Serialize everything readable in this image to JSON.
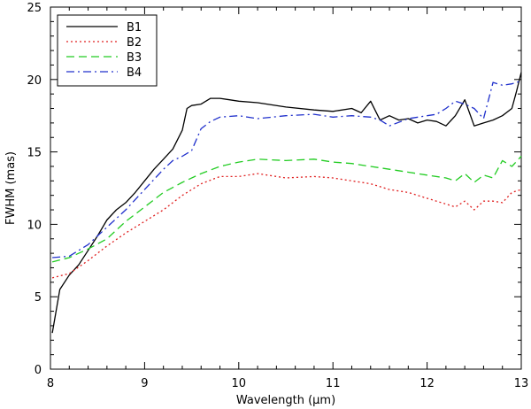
{
  "chart_data": {
    "type": "line",
    "title": "",
    "xlabel": "Wavelength (μm)",
    "ylabel": "FWHM (mas)",
    "xlim": [
      8,
      13
    ],
    "ylim": [
      0,
      25
    ],
    "xticks": [
      "8",
      "9",
      "10",
      "11",
      "12",
      "13"
    ],
    "yticks": [
      "0",
      "5",
      "10",
      "15",
      "20",
      "25"
    ],
    "grid": false,
    "legend_position": "top-left",
    "series": [
      {
        "name": "B1",
        "color": "#000000",
        "dash": "solid",
        "x": [
          8.02,
          8.1,
          8.2,
          8.3,
          8.4,
          8.5,
          8.6,
          8.7,
          8.8,
          8.9,
          9.0,
          9.1,
          9.2,
          9.3,
          9.4,
          9.45,
          9.5,
          9.6,
          9.7,
          9.8,
          9.9,
          10.0,
          10.2,
          10.5,
          10.8,
          11.0,
          11.2,
          11.3,
          11.4,
          11.5,
          11.6,
          11.7,
          11.8,
          11.9,
          12.0,
          12.1,
          12.2,
          12.3,
          12.4,
          12.5,
          12.6,
          12.7,
          12.8,
          12.9,
          12.95,
          13.0
        ],
        "y": [
          2.5,
          5.5,
          6.5,
          7.2,
          8.2,
          9.2,
          10.3,
          11.0,
          11.5,
          12.2,
          13.0,
          13.8,
          14.5,
          15.2,
          16.5,
          18.0,
          18.2,
          18.3,
          18.7,
          18.7,
          18.6,
          18.5,
          18.4,
          18.1,
          17.9,
          17.8,
          18.0,
          17.7,
          18.5,
          17.2,
          17.5,
          17.2,
          17.3,
          17.0,
          17.2,
          17.1,
          16.8,
          17.5,
          18.6,
          16.8,
          17.0,
          17.2,
          17.5,
          18.0,
          19.2,
          20.5
        ]
      },
      {
        "name": "B2",
        "color": "#e02020",
        "dash": "dotted",
        "x": [
          8.02,
          8.2,
          8.4,
          8.6,
          8.8,
          9.0,
          9.2,
          9.4,
          9.6,
          9.8,
          10.0,
          10.2,
          10.5,
          10.8,
          11.0,
          11.2,
          11.4,
          11.6,
          11.8,
          12.0,
          12.2,
          12.3,
          12.4,
          12.5,
          12.6,
          12.7,
          12.8,
          12.9,
          13.0
        ],
        "y": [
          6.3,
          6.6,
          7.5,
          8.5,
          9.4,
          10.2,
          11.0,
          12.0,
          12.8,
          13.3,
          13.3,
          13.5,
          13.2,
          13.3,
          13.2,
          13.0,
          12.8,
          12.4,
          12.2,
          11.8,
          11.4,
          11.2,
          11.6,
          11.0,
          11.6,
          11.6,
          11.5,
          12.2,
          12.4
        ]
      },
      {
        "name": "B3",
        "color": "#22cc22",
        "dash": "dashed",
        "x": [
          8.02,
          8.2,
          8.4,
          8.6,
          8.8,
          9.0,
          9.2,
          9.4,
          9.6,
          9.8,
          10.0,
          10.2,
          10.5,
          10.8,
          11.0,
          11.2,
          11.4,
          11.6,
          11.8,
          12.0,
          12.2,
          12.3,
          12.4,
          12.5,
          12.6,
          12.7,
          12.8,
          12.9,
          13.0
        ],
        "y": [
          7.4,
          7.7,
          8.3,
          9.0,
          10.2,
          11.2,
          12.2,
          12.9,
          13.5,
          14.0,
          14.3,
          14.5,
          14.4,
          14.5,
          14.3,
          14.2,
          14.0,
          13.8,
          13.6,
          13.4,
          13.2,
          13.0,
          13.5,
          12.9,
          13.4,
          13.2,
          14.4,
          14.0,
          14.7
        ]
      },
      {
        "name": "B4",
        "color": "#2030cc",
        "dash": "dashdot",
        "x": [
          8.02,
          8.2,
          8.4,
          8.6,
          8.8,
          9.0,
          9.2,
          9.3,
          9.4,
          9.5,
          9.6,
          9.7,
          9.8,
          10.0,
          10.2,
          10.5,
          10.8,
          11.0,
          11.2,
          11.4,
          11.5,
          11.6,
          11.8,
          12.0,
          12.1,
          12.2,
          12.3,
          12.4,
          12.5,
          12.6,
          12.7,
          12.8,
          12.9,
          13.0
        ],
        "y": [
          7.7,
          7.8,
          8.6,
          9.8,
          11.0,
          12.4,
          13.8,
          14.4,
          14.7,
          15.1,
          16.6,
          17.1,
          17.4,
          17.5,
          17.3,
          17.5,
          17.6,
          17.4,
          17.5,
          17.4,
          17.2,
          16.8,
          17.3,
          17.5,
          17.6,
          18.0,
          18.5,
          18.3,
          18.0,
          17.3,
          19.8,
          19.6,
          19.7,
          19.9
        ]
      }
    ]
  }
}
